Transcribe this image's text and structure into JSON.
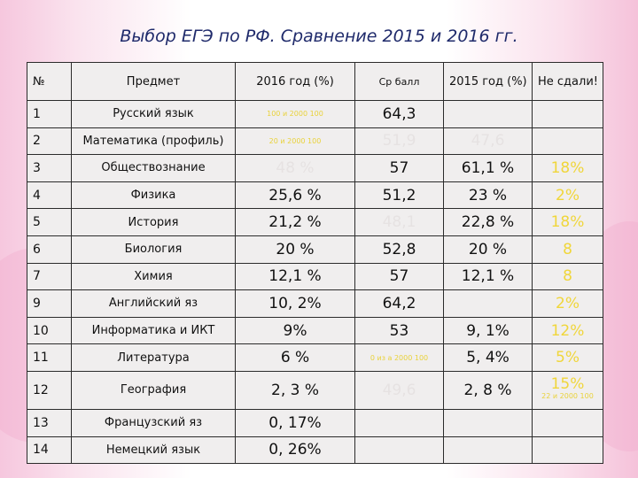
{
  "title": "Выбор ЕГЭ по РФ. Сравнение 2015 и 2016 гг.",
  "headers": {
    "num": "№",
    "subject": "Предмет",
    "y2016": "2016 год (%)",
    "avg": "Ср балл",
    "y2015": "2015 год (%)",
    "failed": "Не сдали!"
  },
  "rows": [
    {
      "num": "1",
      "subject": "Русский язык",
      "y2016": "100 и 2000 100",
      "avg": "64,3",
      "y2015": "",
      "failed": ""
    },
    {
      "num": "2",
      "subject": "Математика (профиль)",
      "y2016": "20 и 2000 100",
      "avg": "51,9",
      "y2015": "47,6",
      "failed": ""
    },
    {
      "num": "3",
      "subject": "Обществознание",
      "y2016": "48 %",
      "avg": "57",
      "y2015": "61,1 %",
      "failed": "18%"
    },
    {
      "num": "4",
      "subject": "Физика",
      "y2016": "25,6 %",
      "avg": "51,2",
      "y2015": "23 %",
      "failed": "2%"
    },
    {
      "num": "5",
      "subject": "История",
      "y2016": "21,2 %",
      "avg": "48,1",
      "y2015": "22,8 %",
      "failed": "18%"
    },
    {
      "num": "6",
      "subject": "Биология",
      "y2016": "20 %",
      "avg": "52,8",
      "y2015": "20 %",
      "failed": "8"
    },
    {
      "num": "7",
      "subject": "Химия",
      "y2016": "12,1 %",
      "avg": "57",
      "y2015": "12,1 %",
      "failed": "8"
    },
    {
      "num": "9",
      "subject": "Английский яз",
      "y2016": "10, 2%",
      "avg": "64,2",
      "y2015": "",
      "failed": "2%"
    },
    {
      "num": "10",
      "subject": "Информатика и ИКТ",
      "y2016": "9%",
      "avg": "53",
      "y2015": "9, 1%",
      "failed": "12%"
    },
    {
      "num": "11",
      "subject": "Литература",
      "y2016": "6 %",
      "avg": "0 из а 2000 100",
      "y2015": "5, 4%",
      "failed": "5%"
    },
    {
      "num": "12",
      "subject": "География",
      "y2016": "2, 3 %",
      "avg": "49,6",
      "y2015": "2, 8 %",
      "failed": "15%",
      "failed_note": "22 и 2000 100"
    },
    {
      "num": "13",
      "subject": "Французский яз",
      "y2016": "0, 17%",
      "avg": "",
      "y2015": "",
      "failed": ""
    },
    {
      "num": "14",
      "subject": "Немецкий язык",
      "y2016": "0, 26%",
      "avg": "",
      "y2015": "",
      "failed": ""
    }
  ]
}
